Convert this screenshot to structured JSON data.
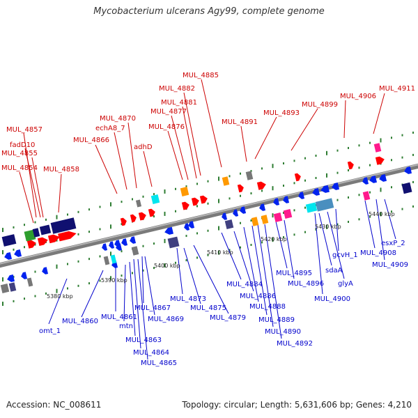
{
  "title": "Mycobacterium ulcerans Agy99, complete genome",
  "footer": {
    "accession": "Accession: NC_008611",
    "summary": "Topology: circular; Length: 5,631,606 bp; Genes: 4,210"
  },
  "colors": {
    "background": "#ffffff",
    "backbone": "#7a7a7a",
    "tick_dot": "#2e7d32",
    "forward_label": "#cc0000",
    "reverse_label": "#0000cc",
    "forward_gene": "#ff0000",
    "reverse_gene": "#0022ee",
    "navy": "#101070",
    "navy_light": "#404080",
    "cyan": "#00e5ee",
    "orange": "#ff9900",
    "magenta": "#ff1a8c",
    "green": "#2e9e2e",
    "grey": "#777777",
    "steelblue": "#4a8fbf"
  },
  "kbp_labels": [
    "5380 kbp",
    "5390 kbp",
    "5400 kbp",
    "5410 kbp",
    "5420 kbp",
    "5430 kbp",
    "5440 kbp"
  ],
  "forward_labels": [
    "MUL_4857",
    "fadD10",
    "MUL_4855",
    "MUL_4854",
    "MUL_4858",
    "MUL_4866",
    "echA8_7",
    "MUL_4870",
    "MUL_4876",
    "MUL_4877",
    "adhD",
    "MUL_4881",
    "MUL_4882",
    "MUL_4885",
    "MUL_4891",
    "MUL_4893",
    "MUL_4899",
    "MUL_4906",
    "MUL_4911"
  ],
  "reverse_labels": [
    "omt_1",
    "MUL_4860",
    "MUL_4861",
    "mtn",
    "MUL_4863",
    "MUL_4864",
    "MUL_4865",
    "MUL_4867",
    "MUL_4869",
    "MUL_4873",
    "MUL_4875",
    "MUL_4879",
    "MUL_4884",
    "MUL_4886",
    "MUL_4888",
    "MUL_4889",
    "MUL_4890",
    "MUL_4892",
    "MUL_4895",
    "MUL_4896",
    "MUL_4900",
    "sdaA",
    "glyA",
    "gcvH_1",
    "MUL_4908",
    "MUL_4909",
    "esxP_2"
  ]
}
